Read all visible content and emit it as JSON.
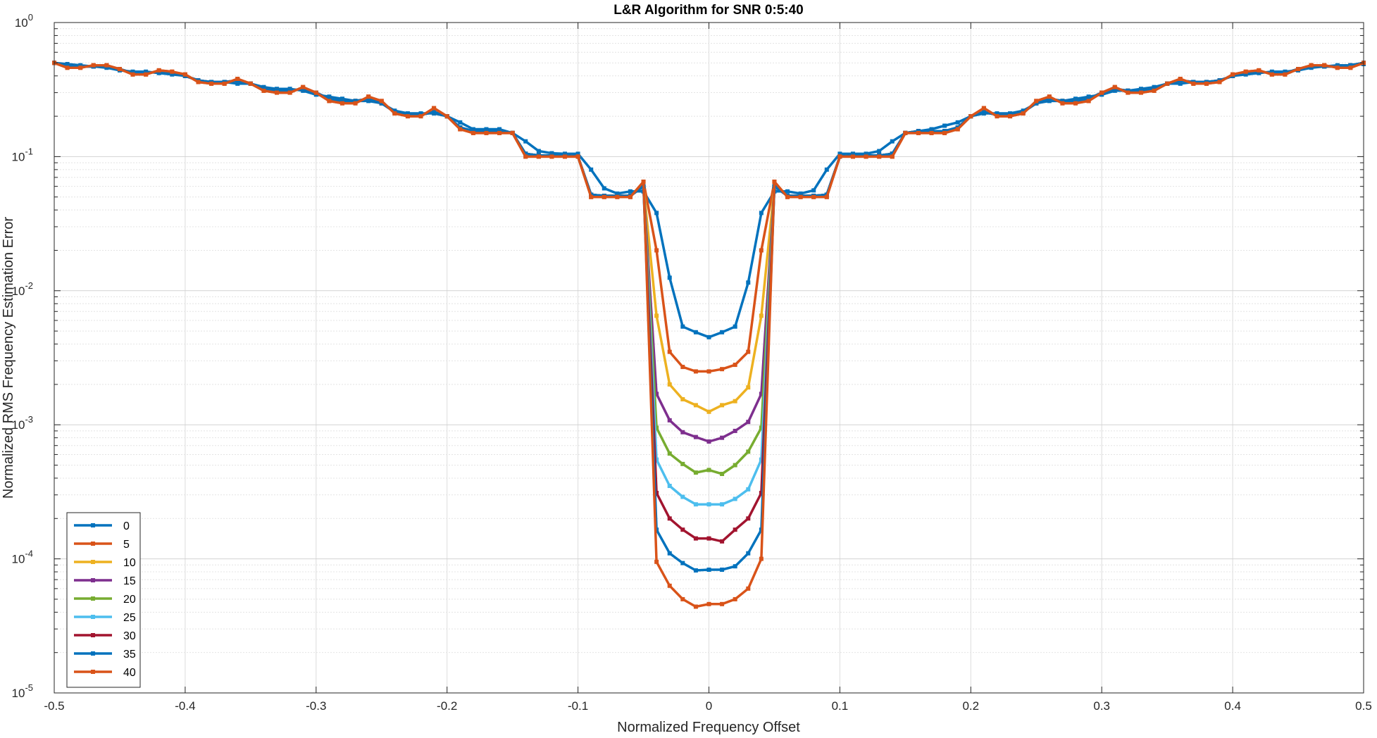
{
  "chart_data": {
    "type": "line",
    "title": "L&R Algorithm for SNR 0:5:40",
    "xlabel": "Normalized Frequency Offset",
    "ylabel": "Normalized RMS Frequency Estimation Error",
    "xlim": [
      -0.5,
      0.5
    ],
    "ylim": [
      1e-05,
      1
    ],
    "yscale": "log",
    "grid": true,
    "minor_grid": true,
    "legend_position": "bottom-left",
    "x_ticks": [
      "-0.5",
      "-0.4",
      "-0.3",
      "-0.2",
      "-0.1",
      "0",
      "0.1",
      "0.2",
      "0.3",
      "0.4",
      "0.5"
    ],
    "y_ticks": [
      {
        "base": "10",
        "exp": "-5"
      },
      {
        "base": "10",
        "exp": "-4"
      },
      {
        "base": "10",
        "exp": "-3"
      },
      {
        "base": "10",
        "exp": "-2"
      },
      {
        "base": "10",
        "exp": "-1"
      },
      {
        "base": "10",
        "exp": "0"
      }
    ],
    "x": [
      -0.5,
      -0.49,
      -0.48,
      -0.47,
      -0.46,
      -0.45,
      -0.44,
      -0.43,
      -0.42,
      -0.41,
      -0.4,
      -0.39,
      -0.38,
      -0.37,
      -0.36,
      -0.35,
      -0.34,
      -0.33,
      -0.32,
      -0.31,
      -0.3,
      -0.29,
      -0.28,
      -0.27,
      -0.26,
      -0.25,
      -0.24,
      -0.23,
      -0.22,
      -0.21,
      -0.2,
      -0.19,
      -0.18,
      -0.17,
      -0.16,
      -0.15,
      -0.14,
      -0.13,
      -0.12,
      -0.11,
      -0.1,
      -0.09,
      -0.08,
      -0.07,
      -0.06,
      -0.05,
      -0.04,
      -0.03,
      -0.02,
      -0.01,
      0,
      0.01,
      0.02,
      0.03,
      0.04,
      0.05,
      0.06,
      0.07,
      0.08,
      0.09,
      0.1,
      0.11,
      0.12,
      0.13,
      0.14,
      0.15,
      0.16,
      0.17,
      0.18,
      0.19,
      0.2,
      0.21,
      0.22,
      0.23,
      0.24,
      0.25,
      0.26,
      0.27,
      0.28,
      0.29,
      0.3,
      0.31,
      0.32,
      0.33,
      0.34,
      0.35,
      0.36,
      0.37,
      0.38,
      0.39,
      0.4,
      0.41,
      0.42,
      0.43,
      0.44,
      0.45,
      0.46,
      0.47,
      0.48,
      0.49,
      0.5
    ],
    "series": [
      {
        "name": "0",
        "color": "#0072BD",
        "values": [
          0.5,
          0.49,
          0.48,
          0.47,
          0.46,
          0.44,
          0.43,
          0.43,
          0.42,
          0.41,
          0.4,
          0.37,
          0.36,
          0.36,
          0.35,
          0.35,
          0.33,
          0.32,
          0.32,
          0.31,
          0.29,
          0.28,
          0.27,
          0.26,
          0.26,
          0.25,
          0.22,
          0.21,
          0.21,
          0.21,
          0.2,
          0.18,
          0.16,
          0.16,
          0.16,
          0.15,
          0.13,
          0.11,
          0.106,
          0.105,
          0.105,
          0.08,
          0.058,
          0.053,
          0.055,
          0.055,
          0.038,
          0.0125,
          0.0054,
          0.0049,
          0.0045,
          0.0049,
          0.0054,
          0.0115,
          0.038,
          0.055,
          0.055,
          0.053,
          0.056,
          0.08,
          0.105,
          0.105,
          0.105,
          0.11,
          0.13,
          0.15,
          0.155,
          0.16,
          0.17,
          0.18,
          0.2,
          0.21,
          0.21,
          0.21,
          0.22,
          0.25,
          0.26,
          0.26,
          0.27,
          0.28,
          0.29,
          0.31,
          0.31,
          0.32,
          0.33,
          0.35,
          0.35,
          0.36,
          0.36,
          0.37,
          0.4,
          0.41,
          0.42,
          0.43,
          0.43,
          0.44,
          0.46,
          0.47,
          0.48,
          0.48,
          0.49
        ]
      },
      {
        "name": "5",
        "color": "#D95319",
        "values": [
          0.5,
          0.46,
          0.46,
          0.48,
          0.48,
          0.45,
          0.41,
          0.41,
          0.44,
          0.43,
          0.41,
          0.36,
          0.35,
          0.35,
          0.38,
          0.35,
          0.31,
          0.3,
          0.3,
          0.33,
          0.3,
          0.26,
          0.25,
          0.25,
          0.28,
          0.26,
          0.21,
          0.2,
          0.2,
          0.23,
          0.2,
          0.16,
          0.15,
          0.15,
          0.15,
          0.15,
          0.1,
          0.1,
          0.1,
          0.1,
          0.1,
          0.05,
          0.05,
          0.05,
          0.05,
          0.065,
          0.02,
          0.0035,
          0.0027,
          0.0025,
          0.0025,
          0.0026,
          0.0028,
          0.0035,
          0.02,
          0.065,
          0.05,
          0.05,
          0.05,
          0.05,
          0.1,
          0.1,
          0.1,
          0.1,
          0.1,
          0.15,
          0.15,
          0.15,
          0.15,
          0.16,
          0.2,
          0.23,
          0.2,
          0.2,
          0.21,
          0.26,
          0.28,
          0.25,
          0.25,
          0.26,
          0.3,
          0.33,
          0.3,
          0.3,
          0.31,
          0.35,
          0.38,
          0.35,
          0.35,
          0.36,
          0.41,
          0.43,
          0.44,
          0.41,
          0.41,
          0.45,
          0.48,
          0.48,
          0.46,
          0.46,
          0.5
        ]
      },
      {
        "name": "10",
        "color": "#EDB120",
        "values": [
          0.5,
          0.48,
          0.47,
          0.47,
          0.47,
          0.45,
          0.42,
          0.42,
          0.43,
          0.42,
          0.4,
          0.37,
          0.36,
          0.36,
          0.37,
          0.35,
          0.32,
          0.31,
          0.31,
          0.32,
          0.3,
          0.27,
          0.26,
          0.26,
          0.27,
          0.25,
          0.215,
          0.205,
          0.205,
          0.215,
          0.2,
          0.165,
          0.155,
          0.155,
          0.155,
          0.15,
          0.105,
          0.102,
          0.102,
          0.102,
          0.1,
          0.052,
          0.051,
          0.051,
          0.051,
          0.06,
          0.0065,
          0.002,
          0.00155,
          0.0014,
          0.00125,
          0.0014,
          0.0015,
          0.0019,
          0.0065,
          0.06,
          0.051,
          0.051,
          0.051,
          0.052,
          0.1,
          0.102,
          0.102,
          0.102,
          0.105,
          0.15,
          0.155,
          0.155,
          0.155,
          0.165,
          0.2,
          0.215,
          0.205,
          0.205,
          0.215,
          0.25,
          0.27,
          0.26,
          0.26,
          0.27,
          0.3,
          0.32,
          0.31,
          0.31,
          0.32,
          0.35,
          0.37,
          0.36,
          0.36,
          0.37,
          0.4,
          0.42,
          0.43,
          0.42,
          0.42,
          0.45,
          0.47,
          0.47,
          0.47,
          0.48,
          0.5
        ]
      },
      {
        "name": "15",
        "color": "#7E2F8E",
        "values": [
          0.5,
          0.48,
          0.47,
          0.47,
          0.47,
          0.45,
          0.42,
          0.42,
          0.43,
          0.42,
          0.4,
          0.37,
          0.36,
          0.36,
          0.37,
          0.35,
          0.32,
          0.31,
          0.31,
          0.32,
          0.3,
          0.27,
          0.26,
          0.26,
          0.27,
          0.25,
          0.215,
          0.205,
          0.205,
          0.215,
          0.2,
          0.165,
          0.155,
          0.155,
          0.155,
          0.15,
          0.105,
          0.102,
          0.102,
          0.102,
          0.1,
          0.052,
          0.051,
          0.051,
          0.051,
          0.06,
          0.0017,
          0.00108,
          0.00088,
          0.00081,
          0.00075,
          0.0008,
          0.0009,
          0.00105,
          0.0017,
          0.06,
          0.051,
          0.051,
          0.051,
          0.052,
          0.1,
          0.102,
          0.102,
          0.102,
          0.105,
          0.15,
          0.155,
          0.155,
          0.155,
          0.165,
          0.2,
          0.215,
          0.205,
          0.205,
          0.215,
          0.25,
          0.27,
          0.26,
          0.26,
          0.27,
          0.3,
          0.32,
          0.31,
          0.31,
          0.32,
          0.35,
          0.37,
          0.36,
          0.36,
          0.37,
          0.4,
          0.42,
          0.43,
          0.42,
          0.42,
          0.45,
          0.47,
          0.47,
          0.47,
          0.48,
          0.5
        ]
      },
      {
        "name": "20",
        "color": "#77AC30",
        "values": [
          0.5,
          0.48,
          0.47,
          0.47,
          0.47,
          0.45,
          0.42,
          0.42,
          0.43,
          0.42,
          0.4,
          0.37,
          0.36,
          0.36,
          0.37,
          0.35,
          0.32,
          0.31,
          0.31,
          0.32,
          0.3,
          0.27,
          0.26,
          0.26,
          0.27,
          0.25,
          0.215,
          0.205,
          0.205,
          0.215,
          0.2,
          0.165,
          0.155,
          0.155,
          0.155,
          0.15,
          0.105,
          0.102,
          0.102,
          0.102,
          0.1,
          0.052,
          0.051,
          0.051,
          0.051,
          0.06,
          0.00095,
          0.00061,
          0.00051,
          0.00044,
          0.00046,
          0.00043,
          0.0005,
          0.00063,
          0.00095,
          0.06,
          0.051,
          0.051,
          0.051,
          0.052,
          0.1,
          0.102,
          0.102,
          0.102,
          0.105,
          0.15,
          0.155,
          0.155,
          0.155,
          0.165,
          0.2,
          0.215,
          0.205,
          0.205,
          0.215,
          0.25,
          0.27,
          0.26,
          0.26,
          0.27,
          0.3,
          0.32,
          0.31,
          0.31,
          0.32,
          0.35,
          0.37,
          0.36,
          0.36,
          0.37,
          0.4,
          0.42,
          0.43,
          0.42,
          0.42,
          0.45,
          0.47,
          0.47,
          0.47,
          0.48,
          0.5
        ]
      },
      {
        "name": "25",
        "color": "#4DBEEE",
        "values": [
          0.5,
          0.48,
          0.47,
          0.47,
          0.47,
          0.45,
          0.42,
          0.42,
          0.43,
          0.42,
          0.4,
          0.37,
          0.36,
          0.36,
          0.37,
          0.35,
          0.32,
          0.31,
          0.31,
          0.32,
          0.3,
          0.27,
          0.26,
          0.26,
          0.27,
          0.25,
          0.215,
          0.205,
          0.205,
          0.215,
          0.2,
          0.165,
          0.155,
          0.155,
          0.155,
          0.15,
          0.105,
          0.102,
          0.102,
          0.102,
          0.1,
          0.052,
          0.051,
          0.051,
          0.051,
          0.06,
          0.00055,
          0.00035,
          0.00029,
          0.000255,
          0.000255,
          0.000255,
          0.00028,
          0.00033,
          0.00055,
          0.06,
          0.051,
          0.051,
          0.051,
          0.052,
          0.1,
          0.102,
          0.102,
          0.102,
          0.105,
          0.15,
          0.155,
          0.155,
          0.155,
          0.165,
          0.2,
          0.215,
          0.205,
          0.205,
          0.215,
          0.25,
          0.27,
          0.26,
          0.26,
          0.27,
          0.3,
          0.32,
          0.31,
          0.31,
          0.32,
          0.35,
          0.37,
          0.36,
          0.36,
          0.37,
          0.4,
          0.42,
          0.43,
          0.42,
          0.42,
          0.45,
          0.47,
          0.47,
          0.47,
          0.48,
          0.5
        ]
      },
      {
        "name": "30",
        "color": "#A2142F",
        "values": [
          0.5,
          0.48,
          0.47,
          0.47,
          0.47,
          0.45,
          0.42,
          0.42,
          0.43,
          0.42,
          0.4,
          0.37,
          0.36,
          0.36,
          0.37,
          0.35,
          0.32,
          0.31,
          0.31,
          0.32,
          0.3,
          0.27,
          0.26,
          0.26,
          0.27,
          0.25,
          0.215,
          0.205,
          0.205,
          0.215,
          0.2,
          0.165,
          0.155,
          0.155,
          0.155,
          0.15,
          0.105,
          0.102,
          0.102,
          0.102,
          0.1,
          0.052,
          0.051,
          0.051,
          0.051,
          0.06,
          0.00031,
          0.0002,
          0.000165,
          0.000142,
          0.000142,
          0.000135,
          0.000165,
          0.0002,
          0.00031,
          0.06,
          0.051,
          0.051,
          0.051,
          0.052,
          0.1,
          0.102,
          0.102,
          0.102,
          0.105,
          0.15,
          0.155,
          0.155,
          0.155,
          0.165,
          0.2,
          0.215,
          0.205,
          0.205,
          0.215,
          0.25,
          0.27,
          0.26,
          0.26,
          0.27,
          0.3,
          0.32,
          0.31,
          0.31,
          0.32,
          0.35,
          0.37,
          0.36,
          0.36,
          0.37,
          0.4,
          0.42,
          0.43,
          0.42,
          0.42,
          0.45,
          0.47,
          0.47,
          0.47,
          0.48,
          0.5
        ]
      },
      {
        "name": "35",
        "color": "#0072BD",
        "values": [
          0.5,
          0.48,
          0.47,
          0.47,
          0.47,
          0.45,
          0.42,
          0.42,
          0.43,
          0.42,
          0.4,
          0.37,
          0.36,
          0.36,
          0.37,
          0.35,
          0.32,
          0.31,
          0.31,
          0.32,
          0.3,
          0.27,
          0.26,
          0.26,
          0.27,
          0.25,
          0.215,
          0.205,
          0.205,
          0.215,
          0.2,
          0.165,
          0.155,
          0.155,
          0.155,
          0.15,
          0.105,
          0.102,
          0.102,
          0.102,
          0.1,
          0.052,
          0.051,
          0.051,
          0.051,
          0.06,
          0.000165,
          0.00011,
          9.3e-05,
          8.2e-05,
          8.3e-05,
          8.3e-05,
          8.8e-05,
          0.00011,
          0.000165,
          0.06,
          0.051,
          0.051,
          0.051,
          0.052,
          0.1,
          0.102,
          0.102,
          0.102,
          0.105,
          0.15,
          0.155,
          0.155,
          0.155,
          0.165,
          0.2,
          0.215,
          0.205,
          0.205,
          0.215,
          0.25,
          0.27,
          0.26,
          0.26,
          0.27,
          0.3,
          0.32,
          0.31,
          0.31,
          0.32,
          0.35,
          0.37,
          0.36,
          0.36,
          0.37,
          0.4,
          0.42,
          0.43,
          0.42,
          0.42,
          0.45,
          0.47,
          0.47,
          0.47,
          0.48,
          0.5
        ]
      },
      {
        "name": "40",
        "color": "#D95319",
        "values": [
          0.5,
          0.46,
          0.46,
          0.48,
          0.48,
          0.45,
          0.41,
          0.41,
          0.44,
          0.43,
          0.41,
          0.36,
          0.35,
          0.35,
          0.38,
          0.35,
          0.31,
          0.3,
          0.3,
          0.33,
          0.3,
          0.26,
          0.25,
          0.25,
          0.28,
          0.26,
          0.21,
          0.2,
          0.2,
          0.23,
          0.2,
          0.16,
          0.15,
          0.15,
          0.15,
          0.15,
          0.1,
          0.1,
          0.1,
          0.1,
          0.1,
          0.05,
          0.05,
          0.05,
          0.05,
          0.065,
          9.5e-05,
          6.3e-05,
          5e-05,
          4.4e-05,
          4.6e-05,
          4.6e-05,
          5e-05,
          6e-05,
          0.0001,
          0.065,
          0.05,
          0.05,
          0.05,
          0.05,
          0.1,
          0.1,
          0.1,
          0.1,
          0.1,
          0.15,
          0.15,
          0.15,
          0.15,
          0.16,
          0.2,
          0.23,
          0.2,
          0.2,
          0.21,
          0.26,
          0.28,
          0.25,
          0.25,
          0.26,
          0.3,
          0.33,
          0.3,
          0.3,
          0.31,
          0.35,
          0.38,
          0.35,
          0.35,
          0.36,
          0.41,
          0.43,
          0.44,
          0.41,
          0.41,
          0.45,
          0.48,
          0.48,
          0.46,
          0.46,
          0.5
        ]
      }
    ]
  }
}
